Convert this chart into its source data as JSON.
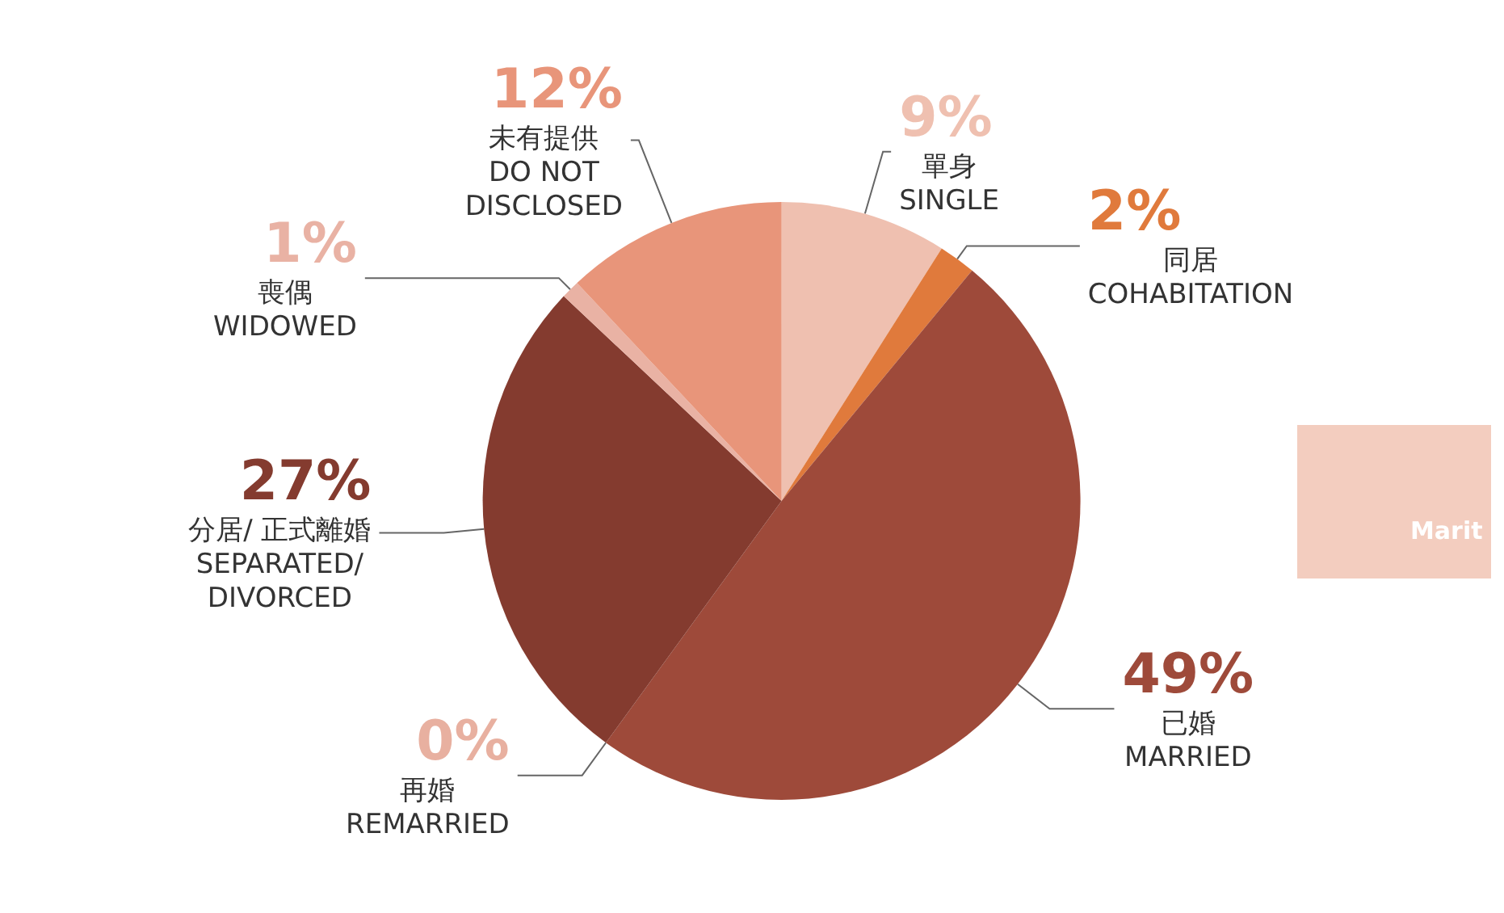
{
  "chart_data": {
    "type": "pie",
    "categories": [
      "單身\nSINGLE",
      "同居\nCOHABITATION",
      "已婚\nMARRIED",
      "再婚\nREMARRIED",
      "分居/ 正式離婚\nSEPARATED/\nDIVORCED",
      "喪偶\nWIDOWED",
      "未有提供\nDO NOT\nDISCLOSED"
    ],
    "values": [
      9,
      2,
      49,
      0,
      27,
      1,
      12
    ],
    "colors": [
      "#efc0b0",
      "#e07a3c",
      "#9e4a3a",
      "#e8b0a0",
      "#843b2f",
      "#e9b2a4",
      "#e8957a"
    ],
    "value_labels": [
      "9%",
      "2%",
      "49%",
      "0%",
      "27%",
      "1%",
      "12%"
    ],
    "annotations": [
      "Marit"
    ],
    "legend": false
  }
}
